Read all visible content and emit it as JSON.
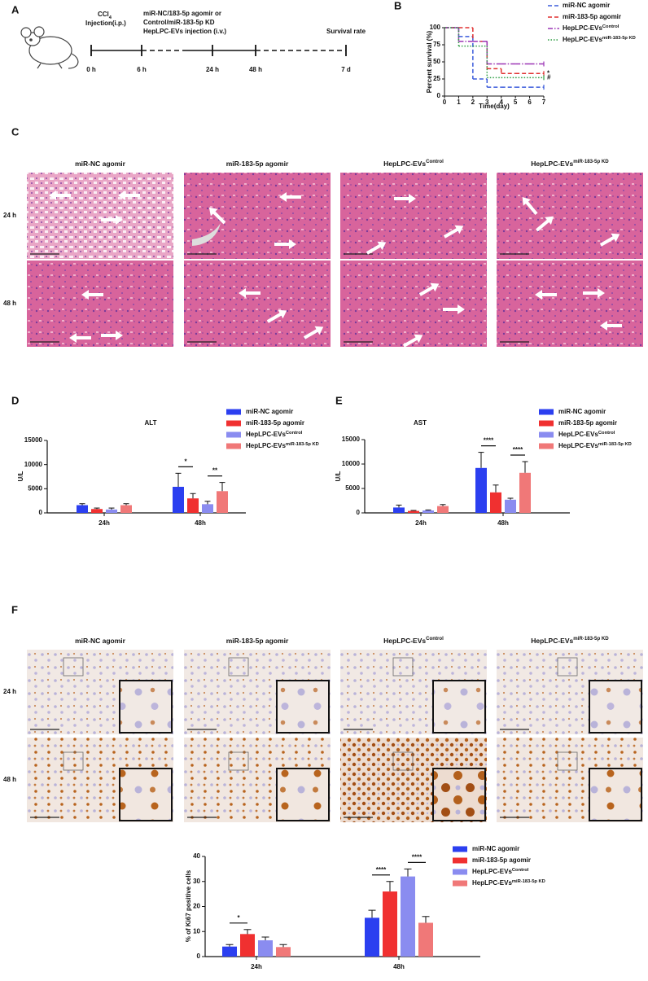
{
  "figure": {
    "panel_labels": [
      "A",
      "B",
      "C",
      "D",
      "E",
      "F"
    ]
  },
  "timeline": {
    "injection": {
      "chem": "CCl",
      "sub": "4",
      "route": "Injection(i.p.)"
    },
    "treatment": [
      "miR-NC/183-5p agomir or",
      "Control/miR-183-5p KD",
      "HepLPC-EVs injection (i.v.)"
    ],
    "endpoint": "Survival rate",
    "times": [
      "0 h",
      "6 h",
      "24 h",
      "48 h",
      "7 d"
    ]
  },
  "histology_he": {
    "columns": [
      {
        "text": "miR-NC agomir"
      },
      {
        "text": "miR-183-5p agomir"
      },
      {
        "text": "HepLPC-EVs",
        "sup": "Control"
      },
      {
        "text": "HepLPC-EVs",
        "sup": "miR-183-5p KD"
      }
    ],
    "rows": [
      "24 h",
      "48 h"
    ]
  },
  "histology_ki67": {
    "columns": [
      {
        "text": "miR-NC agomir"
      },
      {
        "text": "miR-183-5p agomir"
      },
      {
        "text": "HepLPC-EVs",
        "sup": "Control"
      },
      {
        "text": "HepLPC-EVs",
        "sup": "miR-183-5p KD"
      }
    ],
    "rows": [
      "24 h",
      "48 h"
    ]
  },
  "chart_data": [
    {
      "type": "step",
      "xlabel": "Time(day)",
      "ylabel": "Percent survival (%)",
      "x": [
        0,
        1,
        2,
        3,
        4,
        5,
        6,
        7
      ],
      "xlim": [
        0,
        7
      ],
      "ylim": [
        0,
        100
      ],
      "xticks": [
        0,
        1,
        2,
        3,
        4,
        5,
        6,
        7
      ],
      "yticks": [
        0,
        25,
        50,
        75,
        100
      ],
      "series": [
        {
          "name": "miR-NC agomir",
          "color": "#3b5bdb",
          "line_style": "dashed",
          "values": [
            100,
            87,
            25,
            13,
            13,
            13,
            13,
            13
          ]
        },
        {
          "name": "miR-183-5p agomir",
          "color": "#e03131",
          "line_style": "dashed",
          "values": [
            100,
            100,
            80,
            40,
            33,
            33,
            33,
            33
          ]
        },
        {
          "name": "HepLPC-EVs",
          "name_sup": "Control",
          "color": "#9c36b5",
          "line_style": "dashdot",
          "values": [
            100,
            80,
            80,
            47,
            47,
            47,
            47,
            47
          ]
        },
        {
          "name": "HepLPC-EVs",
          "name_sup": "miR-183-5p KD",
          "color": "#2f9e44",
          "line_style": "dotted",
          "values": [
            100,
            73,
            73,
            27,
            27,
            27,
            27,
            27
          ]
        }
      ],
      "annotations": [
        {
          "text": "*",
          "series": 1
        },
        {
          "text": "#",
          "series": 3
        }
      ]
    },
    {
      "type": "bar",
      "title": "ALT",
      "ylabel": "U/L",
      "categories": [
        "24h",
        "48h"
      ],
      "ylim": [
        0,
        15000
      ],
      "yticks": [
        0,
        5000,
        10000,
        15000
      ],
      "series": [
        {
          "name": "miR-NC agomir",
          "color": "#2b3ff0",
          "values": [
            1600,
            5400
          ],
          "errors": [
            300,
            2800
          ]
        },
        {
          "name": "miR-183-5p agomir",
          "color": "#f03030",
          "values": [
            800,
            3000
          ],
          "errors": [
            200,
            1000
          ]
        },
        {
          "name": "HepLPC-EVs",
          "name_sup": "Control",
          "color": "#8a8cf0",
          "values": [
            700,
            1800
          ],
          "errors": [
            300,
            600
          ]
        },
        {
          "name": "HepLPC-EVs",
          "name_sup": "miR-183-5p KD",
          "color": "#f07878",
          "values": [
            1600,
            4500
          ],
          "errors": [
            300,
            1800
          ]
        }
      ],
      "significance": [
        {
          "text": "*",
          "category": 1,
          "between": [
            0,
            1
          ]
        },
        {
          "text": "**",
          "category": 1,
          "between": [
            2,
            3
          ]
        }
      ]
    },
    {
      "type": "bar",
      "title": "AST",
      "ylabel": "U/L",
      "categories": [
        "24h",
        "48h"
      ],
      "ylim": [
        0,
        15000
      ],
      "yticks": [
        0,
        5000,
        10000,
        15000
      ],
      "series": [
        {
          "name": "miR-NC agomir",
          "color": "#2b3ff0",
          "values": [
            1100,
            9200
          ],
          "errors": [
            500,
            3200
          ]
        },
        {
          "name": "miR-183-5p agomir",
          "color": "#f03030",
          "values": [
            400,
            4200
          ],
          "errors": [
            100,
            1500
          ]
        },
        {
          "name": "HepLPC-EVs",
          "name_sup": "Control",
          "color": "#8a8cf0",
          "values": [
            500,
            2700
          ],
          "errors": [
            100,
            300
          ]
        },
        {
          "name": "HepLPC-EVs",
          "name_sup": "miR-183-5p KD",
          "color": "#f07878",
          "values": [
            1400,
            8200
          ],
          "errors": [
            300,
            2300
          ]
        }
      ],
      "significance": [
        {
          "text": "****",
          "category": 1,
          "between": [
            0,
            1
          ]
        },
        {
          "text": "****",
          "category": 1,
          "between": [
            2,
            3
          ]
        }
      ]
    },
    {
      "type": "bar",
      "ylabel": "% of Ki67 positive cells",
      "categories": [
        "24h",
        "48h"
      ],
      "ylim": [
        0,
        40
      ],
      "yticks": [
        0,
        10,
        20,
        30,
        40
      ],
      "series": [
        {
          "name": "miR-NC agomir",
          "color": "#2b3ff0",
          "values": [
            4,
            15.5
          ],
          "errors": [
            0.8,
            3
          ]
        },
        {
          "name": "miR-183-5p agomir",
          "color": "#f03030",
          "values": [
            9,
            26
          ],
          "errors": [
            1.8,
            4
          ]
        },
        {
          "name": "HepLPC-EVs",
          "name_sup": "Control",
          "color": "#8a8cf0",
          "values": [
            6.5,
            32
          ],
          "errors": [
            1.3,
            3
          ]
        },
        {
          "name": "HepLPC-EVs",
          "name_sup": "miR-183-5p KD",
          "color": "#f07878",
          "values": [
            3.8,
            13.5
          ],
          "errors": [
            1,
            2.5
          ]
        }
      ],
      "significance": [
        {
          "text": "*",
          "category": 0,
          "between": [
            0,
            1
          ]
        },
        {
          "text": "****",
          "category": 1,
          "between": [
            0,
            1
          ]
        },
        {
          "text": "****",
          "category": 1,
          "between": [
            2,
            3
          ]
        }
      ]
    }
  ]
}
